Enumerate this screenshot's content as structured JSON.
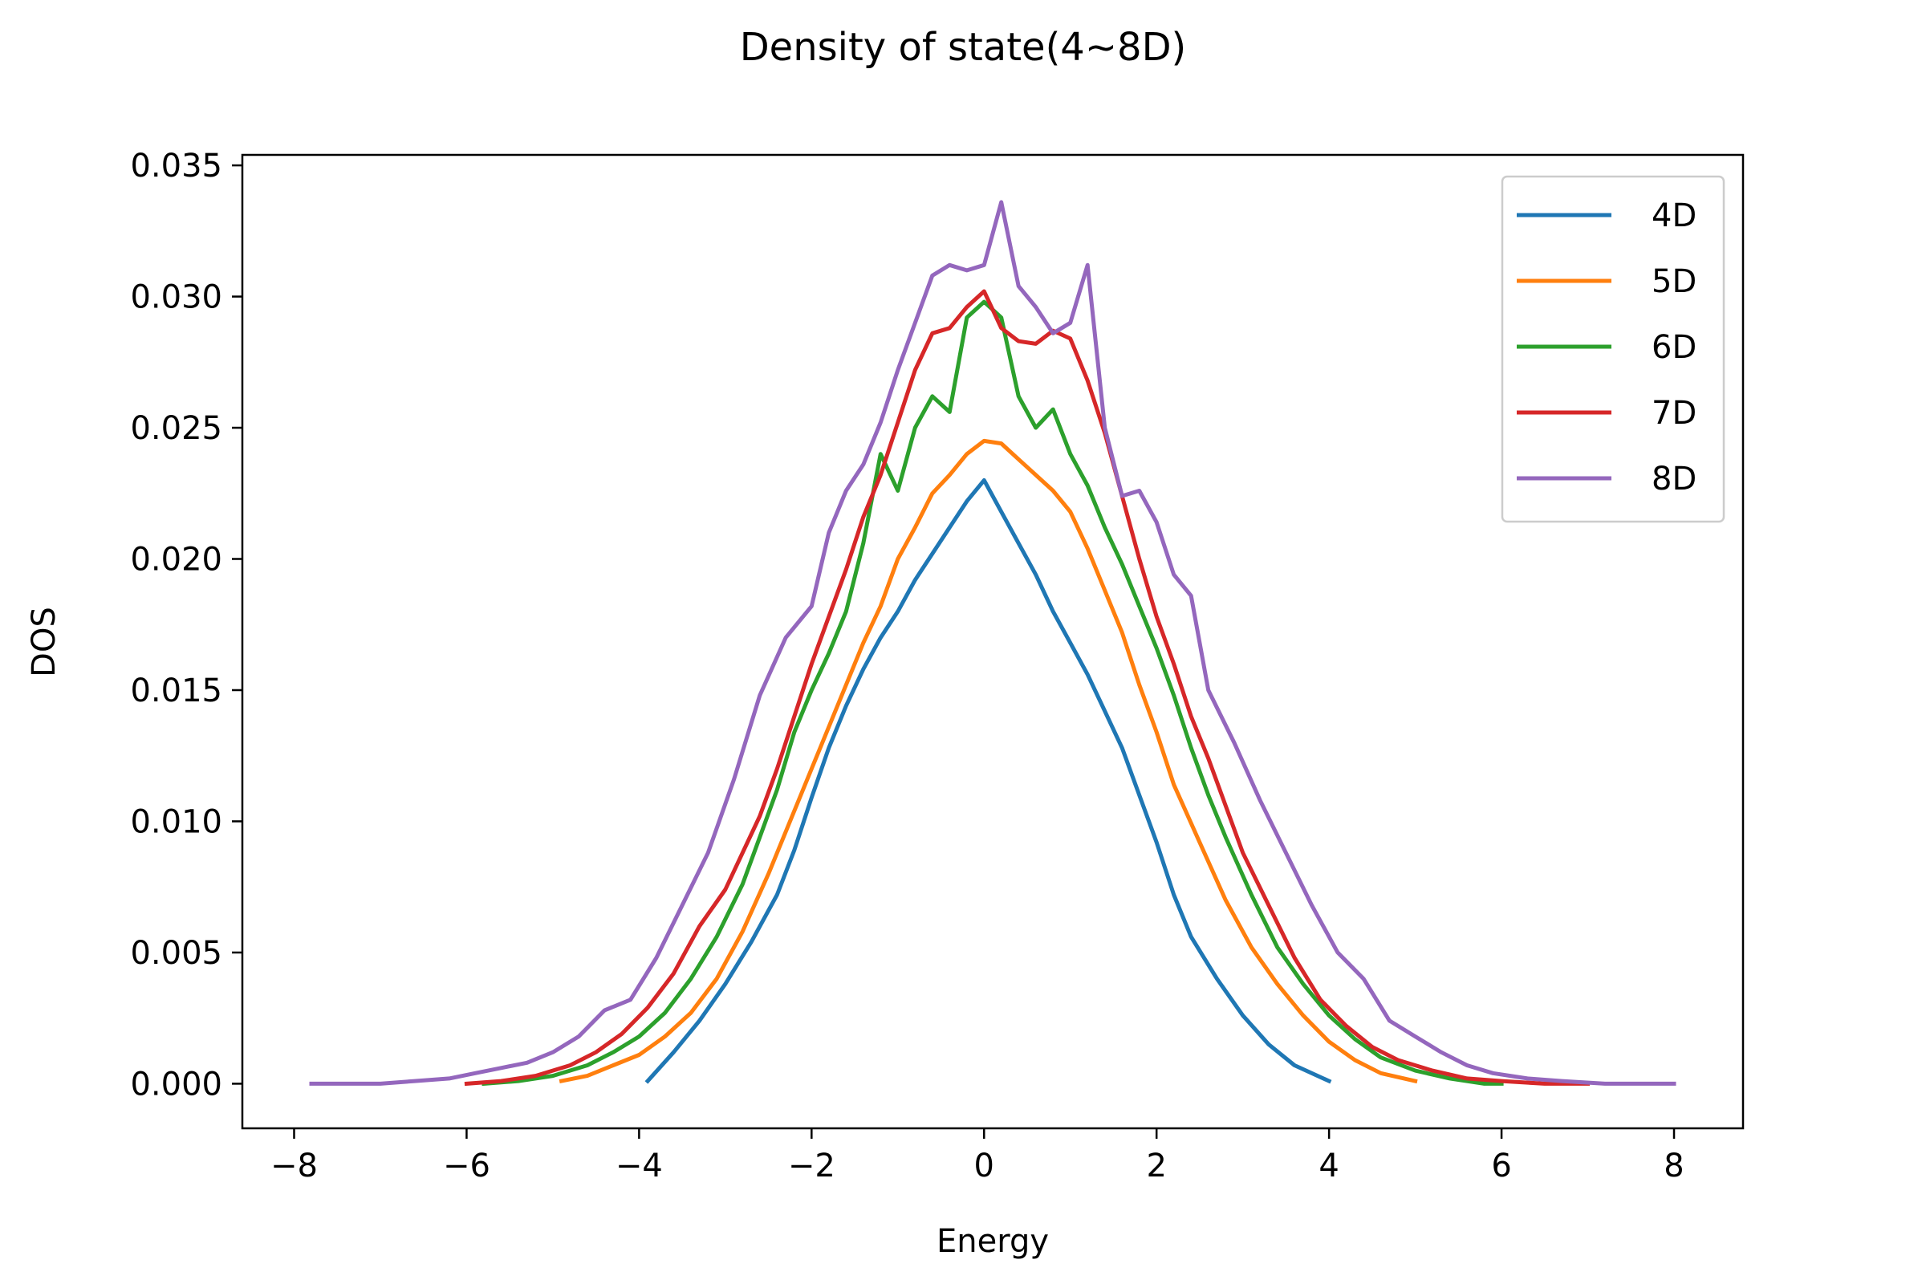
{
  "chart_data": {
    "type": "line",
    "title": "Density of state(4~8D)",
    "xlabel": "Energy",
    "ylabel": "DOS",
    "xlim": [
      -8.6,
      8.8
    ],
    "ylim": [
      -0.0017,
      0.0354
    ],
    "xticks": [
      -8,
      -6,
      -4,
      -2,
      0,
      2,
      4,
      6,
      8
    ],
    "xtick_labels": [
      "−8",
      "−6",
      "−4",
      "−2",
      "0",
      "2",
      "4",
      "6",
      "8"
    ],
    "yticks": [
      0.0,
      0.005,
      0.01,
      0.015,
      0.02,
      0.025,
      0.03,
      0.035
    ],
    "ytick_labels": [
      "0.000",
      "0.005",
      "0.010",
      "0.015",
      "0.020",
      "0.025",
      "0.030",
      "0.035"
    ],
    "legend_position": "top-right",
    "grid": false,
    "series": [
      {
        "name": "4D",
        "color": "#1f77b4",
        "x": [
          -3.9,
          -3.6,
          -3.3,
          -3.0,
          -2.7,
          -2.4,
          -2.2,
          -2.0,
          -1.8,
          -1.6,
          -1.4,
          -1.2,
          -1.0,
          -0.8,
          -0.6,
          -0.4,
          -0.2,
          0.0,
          0.2,
          0.4,
          0.6,
          0.8,
          1.0,
          1.2,
          1.4,
          1.6,
          1.8,
          2.0,
          2.2,
          2.4,
          2.7,
          3.0,
          3.3,
          3.6,
          4.0
        ],
        "values": [
          0.0001,
          0.0012,
          0.0024,
          0.0038,
          0.0054,
          0.0072,
          0.0089,
          0.0109,
          0.0128,
          0.0144,
          0.0158,
          0.017,
          0.018,
          0.0192,
          0.0202,
          0.0212,
          0.0222,
          0.023,
          0.0218,
          0.0206,
          0.0194,
          0.018,
          0.0168,
          0.0156,
          0.0142,
          0.0128,
          0.011,
          0.0092,
          0.0072,
          0.0056,
          0.004,
          0.0026,
          0.0015,
          0.0007,
          0.0001
        ]
      },
      {
        "name": "5D",
        "color": "#ff7f0e",
        "x": [
          -4.9,
          -4.6,
          -4.3,
          -4.0,
          -3.7,
          -3.4,
          -3.1,
          -2.8,
          -2.5,
          -2.2,
          -2.0,
          -1.8,
          -1.6,
          -1.4,
          -1.2,
          -1.0,
          -0.8,
          -0.6,
          -0.4,
          -0.2,
          0.0,
          0.2,
          0.4,
          0.6,
          0.8,
          1.0,
          1.2,
          1.4,
          1.6,
          1.8,
          2.0,
          2.2,
          2.5,
          2.8,
          3.1,
          3.4,
          3.7,
          4.0,
          4.3,
          4.6,
          5.0
        ],
        "values": [
          0.0001,
          0.0003,
          0.0007,
          0.0011,
          0.0018,
          0.0027,
          0.004,
          0.0058,
          0.008,
          0.0104,
          0.012,
          0.0136,
          0.0152,
          0.0168,
          0.0182,
          0.02,
          0.0212,
          0.0225,
          0.0232,
          0.024,
          0.0245,
          0.0244,
          0.0238,
          0.0232,
          0.0226,
          0.0218,
          0.0204,
          0.0188,
          0.0172,
          0.0152,
          0.0134,
          0.0114,
          0.0092,
          0.007,
          0.0052,
          0.0038,
          0.0026,
          0.0016,
          0.0009,
          0.0004,
          0.0001
        ]
      },
      {
        "name": "6D",
        "color": "#2ca02c",
        "x": [
          -5.8,
          -5.4,
          -5.0,
          -4.6,
          -4.3,
          -4.0,
          -3.7,
          -3.4,
          -3.1,
          -2.8,
          -2.6,
          -2.4,
          -2.2,
          -2.0,
          -1.8,
          -1.6,
          -1.4,
          -1.2,
          -1.0,
          -0.8,
          -0.6,
          -0.4,
          -0.2,
          0.0,
          0.2,
          0.4,
          0.6,
          0.8,
          1.0,
          1.2,
          1.4,
          1.6,
          1.8,
          2.0,
          2.2,
          2.4,
          2.6,
          2.8,
          3.1,
          3.4,
          3.7,
          4.0,
          4.3,
          4.6,
          5.0,
          5.4,
          5.8,
          6.0
        ],
        "values": [
          0.0,
          0.0001,
          0.0003,
          0.0007,
          0.0012,
          0.0018,
          0.0027,
          0.004,
          0.0056,
          0.0076,
          0.0094,
          0.0112,
          0.0134,
          0.015,
          0.0164,
          0.018,
          0.0206,
          0.024,
          0.0226,
          0.025,
          0.0262,
          0.0256,
          0.0292,
          0.0298,
          0.0292,
          0.0262,
          0.025,
          0.0257,
          0.024,
          0.0228,
          0.0212,
          0.0198,
          0.0182,
          0.0166,
          0.0148,
          0.0128,
          0.011,
          0.0094,
          0.0072,
          0.0052,
          0.0038,
          0.0026,
          0.0017,
          0.001,
          0.0005,
          0.0002,
          0.0,
          0.0
        ]
      },
      {
        "name": "7D",
        "color": "#d62728",
        "x": [
          -6.0,
          -5.6,
          -5.2,
          -4.8,
          -4.5,
          -4.2,
          -3.9,
          -3.6,
          -3.3,
          -3.0,
          -2.8,
          -2.6,
          -2.4,
          -2.2,
          -2.0,
          -1.8,
          -1.6,
          -1.4,
          -1.2,
          -1.0,
          -0.8,
          -0.6,
          -0.4,
          -0.2,
          0.0,
          0.2,
          0.4,
          0.6,
          0.8,
          1.0,
          1.2,
          1.4,
          1.6,
          1.8,
          2.0,
          2.2,
          2.4,
          2.6,
          2.8,
          3.0,
          3.3,
          3.6,
          3.9,
          4.2,
          4.5,
          4.8,
          5.2,
          5.6,
          6.0,
          6.5,
          7.0
        ],
        "values": [
          0.0,
          0.0001,
          0.0003,
          0.0007,
          0.0012,
          0.0019,
          0.0029,
          0.0042,
          0.006,
          0.0074,
          0.0088,
          0.0102,
          0.012,
          0.014,
          0.016,
          0.0178,
          0.0196,
          0.0216,
          0.0232,
          0.0252,
          0.0272,
          0.0286,
          0.0288,
          0.0296,
          0.0302,
          0.0288,
          0.0283,
          0.0282,
          0.0287,
          0.0284,
          0.0268,
          0.0248,
          0.0224,
          0.02,
          0.0178,
          0.016,
          0.014,
          0.0124,
          0.0106,
          0.0088,
          0.0068,
          0.0048,
          0.0032,
          0.0022,
          0.0014,
          0.0009,
          0.0005,
          0.0002,
          0.0001,
          0.0,
          0.0
        ]
      },
      {
        "name": "8D",
        "color": "#9467bd",
        "x": [
          -7.8,
          -7.4,
          -7.0,
          -6.6,
          -6.2,
          -5.9,
          -5.6,
          -5.3,
          -5.0,
          -4.7,
          -4.4,
          -4.1,
          -3.8,
          -3.5,
          -3.2,
          -2.9,
          -2.6,
          -2.3,
          -2.0,
          -1.8,
          -1.6,
          -1.4,
          -1.2,
          -1.0,
          -0.8,
          -0.6,
          -0.4,
          -0.2,
          0.0,
          0.2,
          0.4,
          0.6,
          0.8,
          1.0,
          1.2,
          1.4,
          1.6,
          1.8,
          2.0,
          2.2,
          2.4,
          2.6,
          2.9,
          3.2,
          3.5,
          3.8,
          4.1,
          4.4,
          4.7,
          5.0,
          5.3,
          5.6,
          5.9,
          6.3,
          6.7,
          7.2,
          8.0
        ],
        "values": [
          0.0,
          0.0,
          0.0,
          0.0001,
          0.0002,
          0.0004,
          0.0006,
          0.0008,
          0.0012,
          0.0018,
          0.0028,
          0.0032,
          0.0048,
          0.0068,
          0.0088,
          0.0116,
          0.0148,
          0.017,
          0.0182,
          0.021,
          0.0226,
          0.0236,
          0.0252,
          0.0272,
          0.029,
          0.0308,
          0.0312,
          0.031,
          0.0312,
          0.0336,
          0.0304,
          0.0296,
          0.0286,
          0.029,
          0.0312,
          0.025,
          0.0224,
          0.0226,
          0.0214,
          0.0194,
          0.0186,
          0.015,
          0.013,
          0.0108,
          0.0088,
          0.0068,
          0.005,
          0.004,
          0.0024,
          0.0018,
          0.0012,
          0.0007,
          0.0004,
          0.0002,
          0.0001,
          0.0,
          0.0
        ]
      }
    ]
  }
}
